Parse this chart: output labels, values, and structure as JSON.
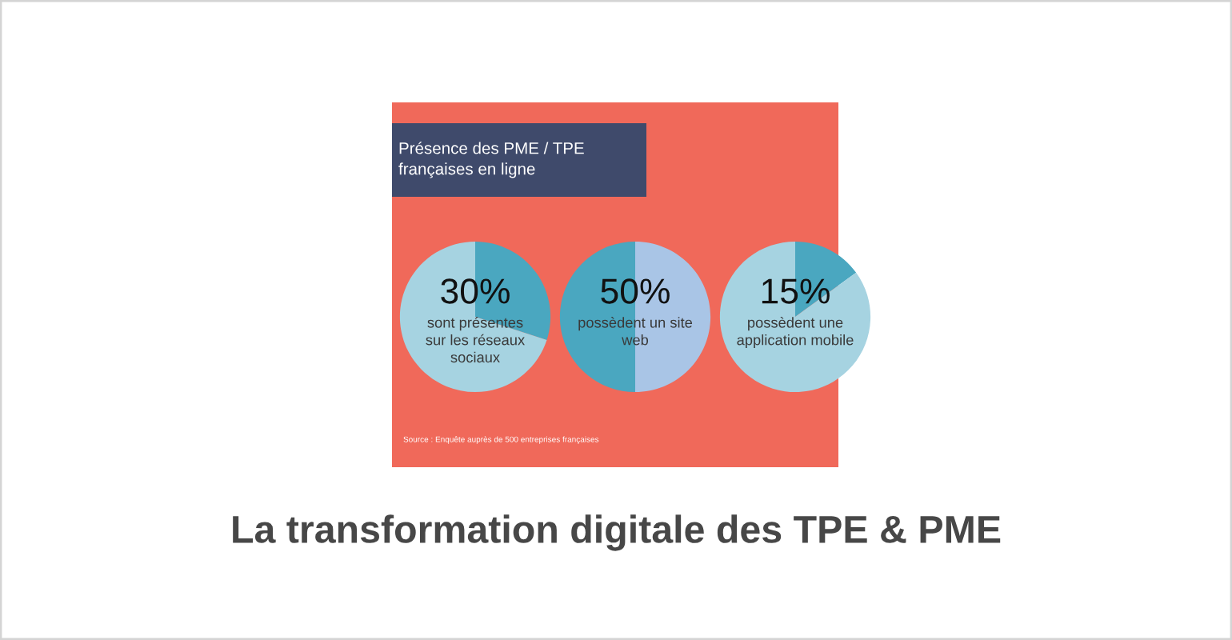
{
  "chart_data": [
    {
      "type": "pie",
      "title": "Présence des PME / TPE\nfrançaises en ligne",
      "categories": [
        "sont présentes\nsur les réseaux\nsociaux",
        null
      ],
      "values": [
        30,
        70
      ],
      "colors": [
        "#4aa7c0",
        "#a6d3e1"
      ],
      "value_labels": [
        "30%",
        null
      ],
      "annotations": [
        "Source : Enquête auprès de 500 entreprises françaises"
      ]
    },
    {
      "type": "pie",
      "categories": [
        null,
        "possèdent un site\nweb"
      ],
      "values": [
        50,
        50
      ],
      "colors": [
        "#a9c5e6",
        "#4aa7c0"
      ],
      "value_labels": [
        null,
        "50%"
      ]
    },
    {
      "type": "pie",
      "categories": [
        "possèdent une\napplication mobile",
        null
      ],
      "values": [
        15,
        85
      ],
      "colors": [
        "#4aa7c0",
        "#a6d3e1"
      ],
      "value_labels": [
        "15%",
        null
      ]
    },
    {
      "type": "other",
      "title": "La transformation digitale des TPE & PME"
    }
  ]
}
